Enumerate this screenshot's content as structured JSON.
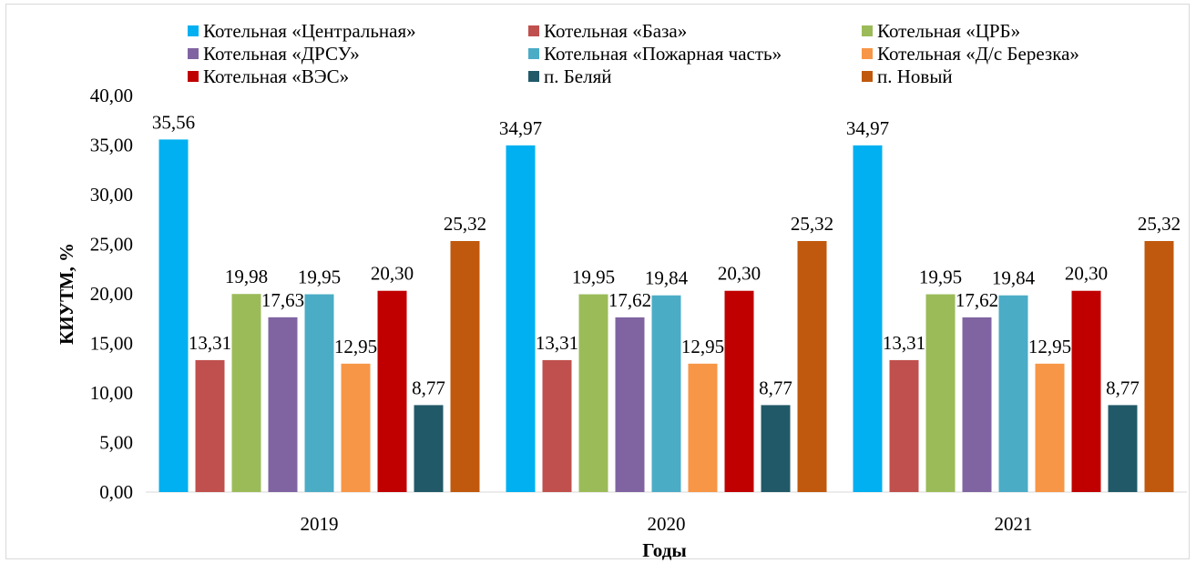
{
  "chart_data": {
    "type": "bar",
    "title": "",
    "xlabel": "Годы",
    "ylabel": "КИУТМ, %",
    "ylim": [
      0,
      40
    ],
    "ytick_step": 5,
    "ytick_labels": [
      "0,00",
      "5,00",
      "10,00",
      "15,00",
      "20,00",
      "25,00",
      "30,00",
      "35,00",
      "40,00"
    ],
    "grid": false,
    "legend_position": "top",
    "categories": [
      "2019",
      "2020",
      "2021"
    ],
    "series": [
      {
        "name": "Котельная «Центральная»",
        "color": "#00b0f0",
        "values": [
          35.56,
          34.97,
          34.97
        ],
        "labels": [
          "35,56",
          "34,97",
          "34,97"
        ]
      },
      {
        "name": "Котельная «База»",
        "color": "#c0504d",
        "values": [
          13.31,
          13.31,
          13.31
        ],
        "labels": [
          "13,31",
          "13,31",
          "13,31"
        ]
      },
      {
        "name": "Котельная «ЦРБ»",
        "color": "#9bbb59",
        "values": [
          19.98,
          19.95,
          19.95
        ],
        "labels": [
          "19,98",
          "19,95",
          "19,95"
        ]
      },
      {
        "name": "Котельная «ДРСУ»",
        "color": "#8064a2",
        "values": [
          17.63,
          17.62,
          17.62
        ],
        "labels": [
          "17,63",
          "17,62",
          "17,62"
        ]
      },
      {
        "name": "Котельная «Пожарная часть»",
        "color": "#4bacc6",
        "values": [
          19.95,
          19.84,
          19.84
        ],
        "labels": [
          "19,95",
          "19,84",
          "19,84"
        ]
      },
      {
        "name": "Котельная «Д/с Березка»",
        "color": "#f79646",
        "values": [
          12.95,
          12.95,
          12.95
        ],
        "labels": [
          "12,95",
          "12,95",
          "12,95"
        ]
      },
      {
        "name": "Котельная «ВЭС»",
        "color": "#c00000",
        "values": [
          20.3,
          20.3,
          20.3
        ],
        "labels": [
          "20,30",
          "20,30",
          "20,30"
        ]
      },
      {
        "name": "п. Беляй",
        "color": "#215968",
        "values": [
          8.77,
          8.77,
          8.77
        ],
        "labels": [
          "8,77",
          "8,77",
          "8,77"
        ]
      },
      {
        "name": "п. Новый",
        "color": "#c0590d",
        "values": [
          25.32,
          25.32,
          25.32
        ],
        "labels": [
          "25,32",
          "25,32",
          "25,32"
        ]
      }
    ]
  }
}
